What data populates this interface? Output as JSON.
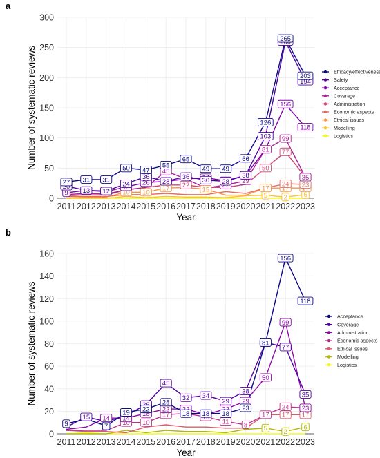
{
  "chart_data": [
    {
      "panel": "a",
      "type": "line",
      "xlabel": "Year",
      "ylabel": "Number of systematic reviews",
      "ylim": [
        0,
        300
      ],
      "yticks": [
        0,
        50,
        100,
        150,
        200,
        250,
        300
      ],
      "x": [
        2011,
        2012,
        2013,
        2014,
        2015,
        2016,
        2017,
        2018,
        2019,
        2020,
        2021,
        2022,
        2023
      ],
      "legend_position": "right",
      "series": [
        {
          "name": "Efficacy/effectiveness",
          "color": "#0d0887",
          "values": [
            27,
            31,
            31,
            50,
            47,
            55,
            65,
            49,
            49,
            66,
            126,
            265,
            203
          ]
        },
        {
          "name": "Safety",
          "color": "#4b03a1",
          "values": [
            20,
            13,
            12,
            24,
            36,
            28,
            36,
            30,
            28,
            38,
            103,
            260,
            194
          ]
        },
        {
          "name": "Acceptance",
          "color": "#7d03a8",
          "values": [
            9,
            13,
            11,
            19,
            26,
            28,
            32,
            34,
            29,
            38,
            81,
            156,
            118
          ]
        },
        {
          "name": "Coverage",
          "color": "#a82296",
          "values": [
            6,
            8,
            7,
            14,
            18,
            45,
            32,
            17,
            22,
            29,
            81,
            99,
            35
          ]
        },
        {
          "name": "Administration",
          "color": "#cb4679",
          "values": [
            4,
            6,
            5,
            14,
            18,
            22,
            22,
            18,
            18,
            23,
            50,
            77,
            35
          ]
        },
        {
          "name": "Economic aspects",
          "color": "#e56b5d",
          "values": [
            3,
            3,
            3,
            6,
            6,
            8,
            6,
            6,
            11,
            8,
            17,
            24,
            23
          ]
        },
        {
          "name": "Ethical issues",
          "color": "#f89441",
          "values": [
            3,
            2,
            2,
            10,
            10,
            17,
            18,
            15,
            5,
            5,
            17,
            17,
            17
          ]
        },
        {
          "name": "Modelling",
          "color": "#fdc328",
          "values": [
            0,
            0,
            0,
            3,
            1,
            3,
            2,
            2,
            1,
            4,
            5,
            2,
            6
          ]
        },
        {
          "name": "Logistics",
          "color": "#f0f921",
          "values": [
            0,
            1,
            0,
            0,
            0,
            0,
            0,
            0,
            0,
            0,
            0,
            0,
            0
          ]
        }
      ],
      "label_values": [
        [
          27,
          31,
          31,
          50,
          47,
          55,
          65,
          49,
          49,
          66,
          126,
          265,
          203
        ],
        [
          20,
          13,
          12,
          24,
          36,
          28,
          36,
          30,
          28,
          38,
          103,
          260,
          194
        ],
        [
          9,
          "",
          "",
          19,
          26,
          28,
          "",
          34,
          29,
          38,
          "",
          156,
          118
        ],
        [
          "",
          "",
          "",
          "",
          "",
          45,
          "",
          "",
          22,
          29,
          81,
          99,
          35
        ],
        [
          "",
          "",
          "",
          "",
          "",
          "",
          22,
          "",
          "",
          "",
          50,
          77,
          35
        ],
        [
          "",
          "",
          "",
          "",
          "",
          "",
          "",
          "",
          "",
          "",
          "",
          24,
          23
        ],
        [
          "",
          "",
          "",
          10,
          10,
          17,
          "",
          15,
          "",
          "",
          17,
          17,
          17
        ],
        [
          "",
          "",
          "",
          "",
          "",
          "",
          "",
          "",
          "",
          "",
          5,
          2,
          6
        ],
        [
          "",
          "",
          "",
          "",
          "",
          "",
          "",
          "",
          "",
          "",
          "",
          "",
          ""
        ]
      ]
    },
    {
      "panel": "b",
      "type": "line",
      "xlabel": "Year",
      "ylabel": "Number of systematic reviews",
      "ylim": [
        0,
        160
      ],
      "yticks": [
        0,
        20,
        40,
        60,
        80,
        100,
        120,
        140,
        160
      ],
      "x": [
        2011,
        2012,
        2013,
        2014,
        2015,
        2016,
        2017,
        2018,
        2019,
        2020,
        2021,
        2022,
        2023
      ],
      "legend_position": "right",
      "series": [
        {
          "name": "Acceptance",
          "color": "#0d0887",
          "values": [
            9,
            13,
            7,
            19,
            22,
            28,
            18,
            18,
            18,
            23,
            81,
            156,
            118
          ]
        },
        {
          "name": "Coverage",
          "color": "#5302a3",
          "values": [
            6,
            15,
            11,
            16,
            26,
            45,
            32,
            34,
            29,
            38,
            81,
            77,
            35
          ]
        },
        {
          "name": "Administration",
          "color": "#8b0aa5",
          "values": [
            4,
            6,
            14,
            14,
            18,
            22,
            22,
            17,
            22,
            29,
            50,
            99,
            23
          ]
        },
        {
          "name": "Economic aspects",
          "color": "#b83289",
          "values": [
            3,
            3,
            3,
            10,
            10,
            17,
            18,
            15,
            11,
            8,
            17,
            24,
            23
          ]
        },
        {
          "name": "Ethical issues",
          "color": "#db5c68",
          "values": [
            3,
            2,
            2,
            1,
            6,
            8,
            6,
            6,
            5,
            5,
            17,
            17,
            17
          ]
        },
        {
          "name": "Modelling",
          "color": "#b2b800",
          "values": [
            0,
            0,
            0,
            3,
            1,
            3,
            2,
            2,
            1,
            4,
            5,
            2,
            6
          ]
        },
        {
          "name": "Logistics",
          "color": "#f0f921",
          "values": [
            0,
            1,
            0,
            0,
            0,
            0,
            0,
            0,
            0,
            0,
            0,
            0,
            0
          ]
        }
      ],
      "label_values": [
        [
          9,
          "",
          7,
          19,
          22,
          28,
          18,
          18,
          18,
          23,
          81,
          156,
          118
        ],
        [
          "",
          15,
          "",
          "",
          26,
          45,
          32,
          34,
          29,
          38,
          "",
          77,
          35
        ],
        [
          "",
          "",
          14,
          14,
          18,
          22,
          22,
          "",
          22,
          29,
          50,
          99,
          23
        ],
        [
          "",
          "",
          "",
          10,
          10,
          17,
          18,
          15,
          11,
          8,
          17,
          24,
          23
        ],
        [
          "",
          "",
          "",
          "",
          "",
          "",
          "",
          "",
          "",
          "",
          "",
          17,
          17
        ],
        [
          "",
          "",
          "",
          "",
          "",
          "",
          "",
          "",
          "",
          "",
          5,
          2,
          6
        ],
        [
          "",
          "",
          "",
          "",
          "",
          "",
          "",
          "",
          "",
          "",
          "",
          "",
          ""
        ]
      ]
    }
  ]
}
